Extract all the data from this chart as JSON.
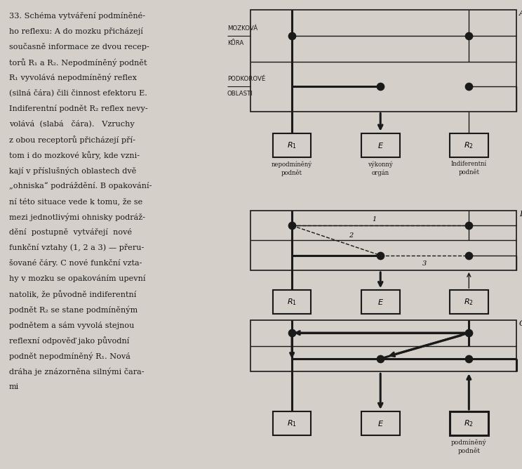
{
  "bg_color": "#d4cfc8",
  "text_color": "#1a1a1a",
  "diagram_bg": "#e8e4dc",
  "box_color": "#1a1a1a",
  "diagram_label_A": "A",
  "diagram_label_B": "B",
  "diagram_label_C": "C",
  "mozek_label1": "MOZKOVÁ",
  "mozek_label2": "KůRA",
  "podkorove_label1": "PODKOROVÉ",
  "podkorove_label2": "OBLASTI",
  "label_nepo1": "nepodmíněný",
  "label_nepo2": "podnět",
  "label_vykon1": "výkonný",
  "label_vykon2": "orgán",
  "label_indif1": "Indiferentní",
  "label_indif2": "podnět",
  "label_podmineny1": "podmíněný",
  "label_podmineny2": "podnět",
  "lw_thin": 1.0,
  "lw_thick": 2.2,
  "dot_size": 55
}
